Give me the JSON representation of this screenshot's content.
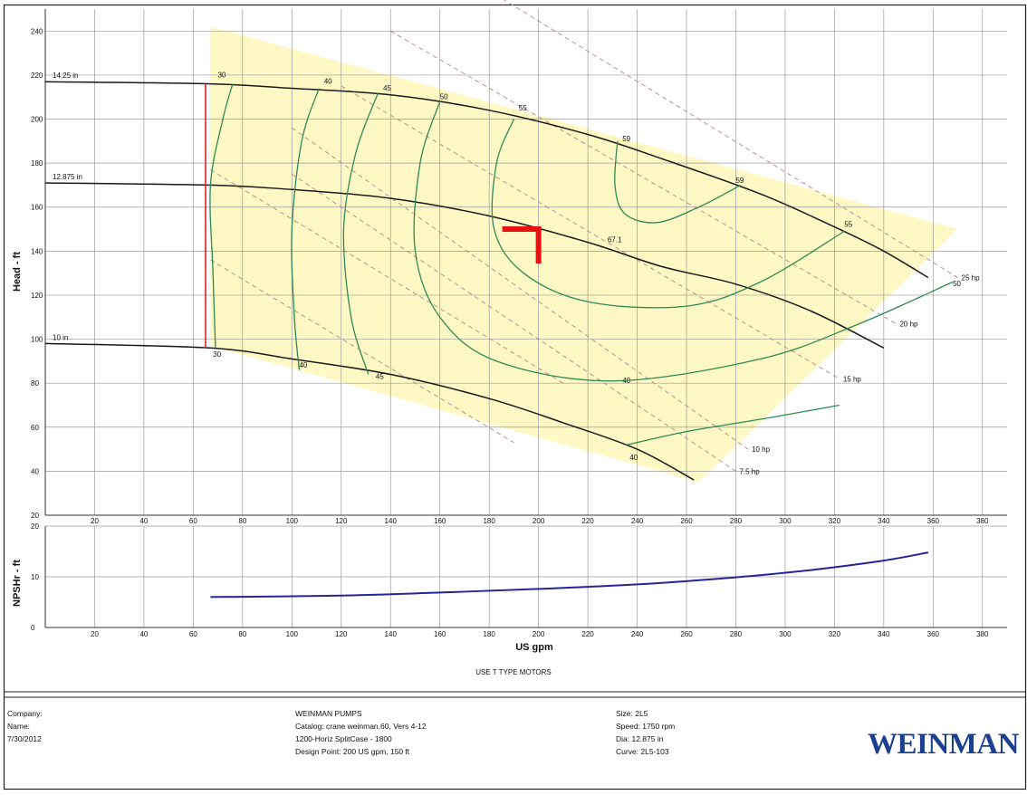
{
  "chart_data": [
    {
      "type": "line",
      "name": "head-chart",
      "xlabel": "",
      "ylabel": "Head - ft",
      "xlim": [
        0,
        390
      ],
      "ylim": [
        20,
        250
      ],
      "x_ticks": [
        20,
        40,
        60,
        80,
        100,
        120,
        140,
        160,
        180,
        200,
        220,
        240,
        260,
        280,
        300,
        320,
        340,
        360,
        380
      ],
      "y_ticks": [
        20,
        40,
        60,
        80,
        100,
        120,
        140,
        160,
        180,
        200,
        220,
        240
      ],
      "operating_region_color": "#fdf8c4",
      "operating_region": [
        [
          67,
          242
        ],
        [
          370,
          150
        ],
        [
          265,
          35
        ],
        [
          67,
          97
        ]
      ],
      "impeller_curves": [
        {
          "label": "14.25 in",
          "points": [
            [
              0,
              217
            ],
            [
              67,
              216
            ],
            [
              100,
              214
            ],
            [
              140,
              211
            ],
            [
              180,
              204
            ],
            [
              220,
              193
            ],
            [
              250,
              182
            ],
            [
              290,
              166
            ],
            [
              320,
              151
            ],
            [
              340,
              140
            ],
            [
              358,
              128
            ]
          ]
        },
        {
          "label": "12.875 in",
          "points": [
            [
              0,
              171
            ],
            [
              67,
              170
            ],
            [
              100,
              168
            ],
            [
              140,
              164
            ],
            [
              180,
              156
            ],
            [
              220,
              144
            ],
            [
              250,
              133
            ],
            [
              280,
              125
            ],
            [
              310,
              113
            ],
            [
              340,
              96
            ]
          ]
        },
        {
          "label": "10 in",
          "points": [
            [
              0,
              98
            ],
            [
              67,
              96
            ],
            [
              100,
              91
            ],
            [
              140,
              84
            ],
            [
              180,
              73
            ],
            [
              210,
              62
            ],
            [
              240,
              50
            ],
            [
              263,
              36
            ]
          ]
        }
      ],
      "efficiency_curves": [
        {
          "label": "30",
          "label_positions": [
            [
              70,
              219
            ],
            [
              68,
              92
            ]
          ],
          "points": [
            [
              76,
              216
            ],
            [
              72,
              200
            ],
            [
              67,
              170
            ],
            [
              68,
              130
            ],
            [
              69,
              96
            ]
          ]
        },
        {
          "label": "40",
          "label_positions": [
            [
              113,
              216
            ],
            [
              103,
              87
            ],
            [
              234,
              80
            ],
            [
              237,
              45
            ]
          ],
          "points": [
            [
              111,
              214
            ],
            [
              104,
              190
            ],
            [
              100,
              150
            ],
            [
              101,
              110
            ],
            [
              103,
              86
            ]
          ]
        },
        {
          "label": "45",
          "label_positions": [
            [
              137,
              213
            ],
            [
              134,
              82
            ]
          ],
          "points": [
            [
              135,
              212
            ],
            [
              126,
              185
            ],
            [
              121,
              150
            ],
            [
              124,
              110
            ],
            [
              131,
              84
            ]
          ]
        },
        {
          "label": "50",
          "label_positions": [
            [
              160,
              209
            ],
            [
              368,
              124
            ]
          ],
          "points": [
            [
              160,
              208
            ],
            [
              152,
              180
            ],
            [
              150,
              140
            ],
            [
              160,
              110
            ],
            [
              183,
              90
            ],
            [
              230,
              81
            ],
            [
              290,
              91
            ],
            [
              330,
              107
            ],
            [
              368,
              126
            ]
          ]
        },
        {
          "label": "55",
          "label_positions": [
            [
              192,
              204
            ],
            [
              324,
              151
            ]
          ],
          "points": [
            [
              190,
              200
            ],
            [
              183,
              180
            ],
            [
              182,
              150
            ],
            [
              194,
              130
            ],
            [
              220,
              117
            ],
            [
              260,
              115
            ],
            [
              290,
              126
            ],
            [
              324,
              149
            ]
          ]
        },
        {
          "label": "59",
          "label_positions": [
            [
              234,
              190
            ],
            [
              280,
              171
            ]
          ],
          "points": [
            [
              232,
              190
            ],
            [
              231,
              170
            ],
            [
              235,
              157
            ],
            [
              248,
              153
            ],
            [
              265,
              160
            ],
            [
              282,
              170
            ]
          ]
        },
        {
          "label": "40",
          "label_positions": [],
          "points": [
            [
              236,
              52
            ],
            [
              260,
              58
            ],
            [
              292,
              64
            ],
            [
              322,
              70
            ]
          ]
        }
      ],
      "peak_efficiency_label": "67.1",
      "peak_efficiency_pos": [
        228,
        144
      ],
      "power_lines": [
        {
          "label": "7.5 hp",
          "points": [
            [
              100,
              175
            ],
            [
              280,
              40
            ]
          ]
        },
        {
          "label": "10 hp",
          "points": [
            [
              100,
              196
            ],
            [
              285,
              50
            ]
          ]
        },
        {
          "label": "15 hp",
          "points": [
            [
              120,
              215
            ],
            [
              322,
              82
            ]
          ]
        },
        {
          "label": "20 hp",
          "points": [
            [
              140,
              240
            ],
            [
              345,
              107
            ]
          ]
        },
        {
          "label": "25 hp",
          "points": [
            [
              160,
              272
            ],
            [
              370,
              128
            ]
          ]
        },
        {
          "label": "",
          "points": [
            [
              67,
              136
            ],
            [
              190,
              53
            ]
          ]
        },
        {
          "label": "",
          "points": [
            [
              67,
              177
            ],
            [
              210,
              80
            ]
          ]
        }
      ],
      "design_point": {
        "flow": 200,
        "head": 150
      },
      "npshr_line_flow": 65,
      "colors": {
        "curve": "#1a1a1a",
        "efficiency": "#2f8a55",
        "power": "#b9838a",
        "design": "#e81010",
        "min_flow": "#e02020",
        "region": "#fdf8c4",
        "grid": "#9a9a9a"
      }
    },
    {
      "type": "line",
      "name": "npshr-chart",
      "xlabel": "US gpm",
      "ylabel": "NPSHr - ft",
      "xlim": [
        0,
        390
      ],
      "ylim": [
        0,
        20
      ],
      "x_ticks": [
        20,
        40,
        60,
        80,
        100,
        120,
        140,
        160,
        180,
        200,
        220,
        240,
        260,
        280,
        300,
        320,
        340,
        360,
        380
      ],
      "y_ticks": [
        0,
        10,
        20
      ],
      "series": [
        {
          "values_xy": [
            [
              67,
              6.0
            ],
            [
              120,
              6.3
            ],
            [
              160,
              6.9
            ],
            [
              200,
              7.6
            ],
            [
              240,
              8.5
            ],
            [
              280,
              9.9
            ],
            [
              310,
              11.3
            ],
            [
              340,
              13.2
            ],
            [
              358,
              14.8
            ]
          ],
          "color": "#27249a"
        }
      ]
    }
  ],
  "header_text": {
    "top_y_tick": "20",
    "motor_note": "USE T TYPE MOTORS"
  },
  "footer": {
    "company_label": "Company:",
    "name_label": "Name:",
    "date": "7/30/2012",
    "pump_brand": "WEINMAN PUMPS",
    "catalog": "Catalog: crane weinman.60, Vers 4-12",
    "series": "1200-Horiz SplitCase - 1800",
    "design_point": "Design Point: 200 US gpm, 150 ft",
    "size": "Size: 2L5",
    "speed": "Speed: 1750 rpm",
    "dia": "Dia: 12.875 in",
    "curve": "Curve: 2L5-103",
    "logo": "WEINMAN"
  }
}
